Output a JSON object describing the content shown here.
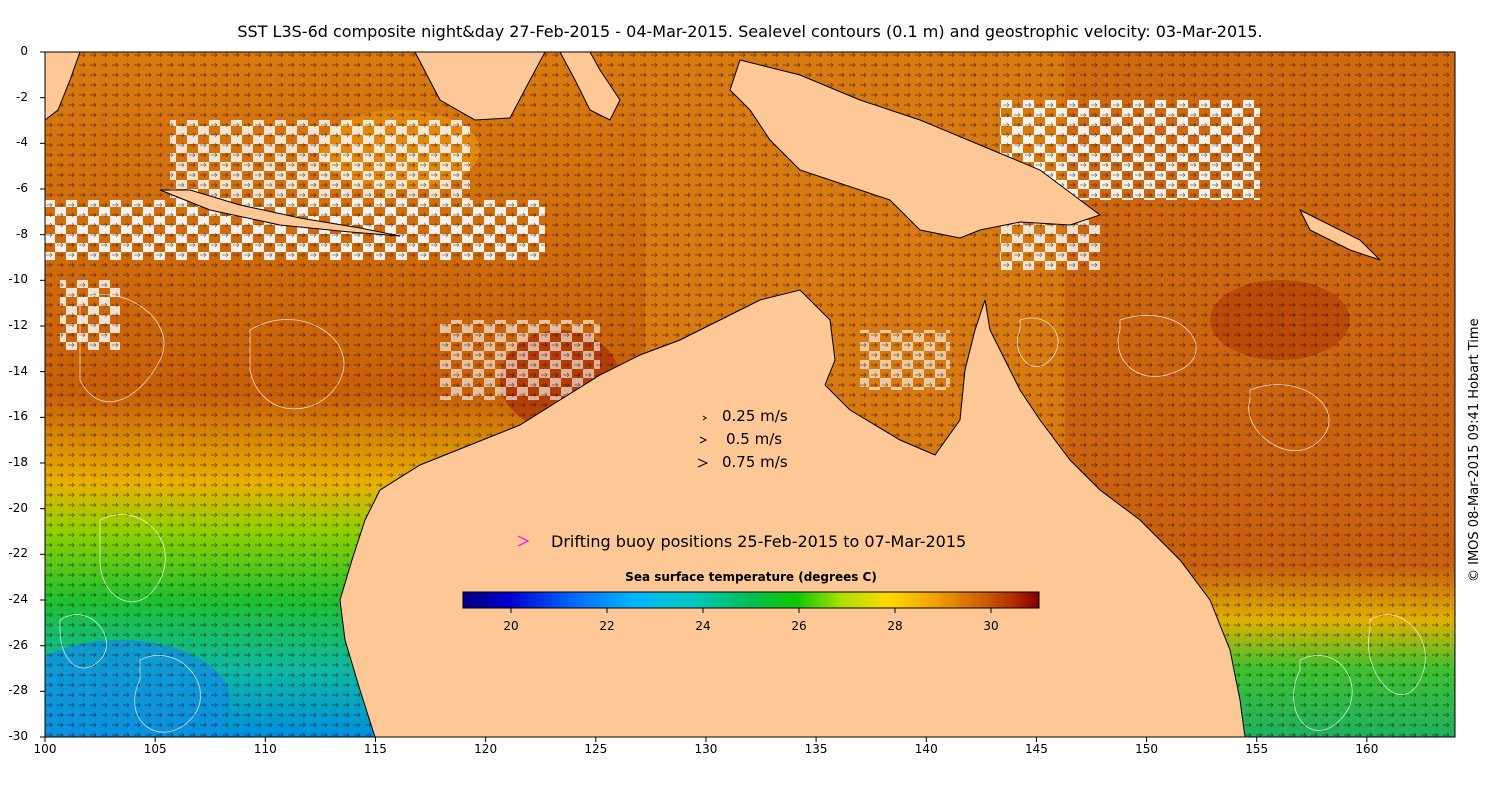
{
  "title": "SST L3S-6d composite night&day 27-Feb-2015 - 04-Mar-2015. Sealevel contours (0.1 m) and geostrophic velocity: 03-Mar-2015.",
  "axes": {
    "x_ticks": [
      "100",
      "105",
      "110",
      "115",
      "120",
      "125",
      "130",
      "135",
      "140",
      "145",
      "150",
      "155",
      "160"
    ],
    "y_ticks": [
      "0",
      "-2",
      "-4",
      "-6",
      "-8",
      "-10",
      "-12",
      "-14",
      "-16",
      "-18",
      "-20",
      "-22",
      "-24",
      "-26",
      "-28",
      "-30"
    ],
    "lon_range": [
      100,
      164
    ],
    "lat_range": [
      -30,
      0
    ]
  },
  "velocity_legend": [
    {
      "label": "0.25 m/s"
    },
    {
      "label": "0.5 m/s"
    },
    {
      "label": "0.75 m/s"
    }
  ],
  "buoy_legend": {
    "symbol": ">",
    "label": "Drifting buoy positions 25-Feb-2015 to 07-Mar-2015",
    "color": "#ff00ff"
  },
  "colorbar": {
    "title": "Sea surface temperature (degrees C)",
    "range": [
      19,
      31
    ],
    "ticks": [
      "20",
      "22",
      "24",
      "26",
      "28",
      "30"
    ],
    "colors": [
      "#000080",
      "#0000c8",
      "#0050ff",
      "#00a0ff",
      "#00d0e0",
      "#00c8a0",
      "#00c040",
      "#20d000",
      "#a0e000",
      "#ffe000",
      "#ffb000",
      "#f08000",
      "#d05000",
      "#b02800",
      "#800000"
    ]
  },
  "land_color": "#fdc896",
  "credit": "© IMOS 08-Mar-2015 09:41 Hobart Time"
}
